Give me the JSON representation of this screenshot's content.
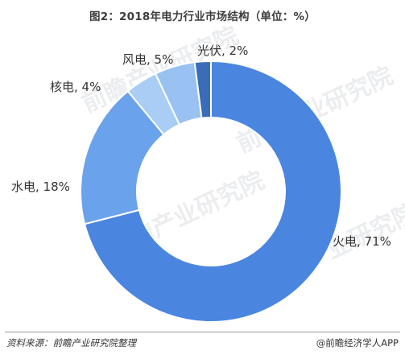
{
  "chart_data": {
    "type": "pie",
    "title": "图2：2018年电力行业市场结构（单位：%）",
    "categories": [
      "火电",
      "水电",
      "核电",
      "风电",
      "光伏"
    ],
    "values": [
      71,
      18,
      4,
      5,
      2
    ],
    "data_labels": [
      "火电, 71%",
      "水电, 18%",
      "核电, 4%",
      "风电, 5%",
      "光伏, 2%"
    ],
    "colors": [
      "#4a86e0",
      "#6aa2ec",
      "#a9cdf5",
      "#99c2f2",
      "#3a6cb8"
    ],
    "donut": true
  },
  "watermark": "前瞻产业研究院",
  "footer": {
    "source": "资料来源：前瞻产业研究院整理",
    "credit": "@前瞻经济学人APP"
  }
}
